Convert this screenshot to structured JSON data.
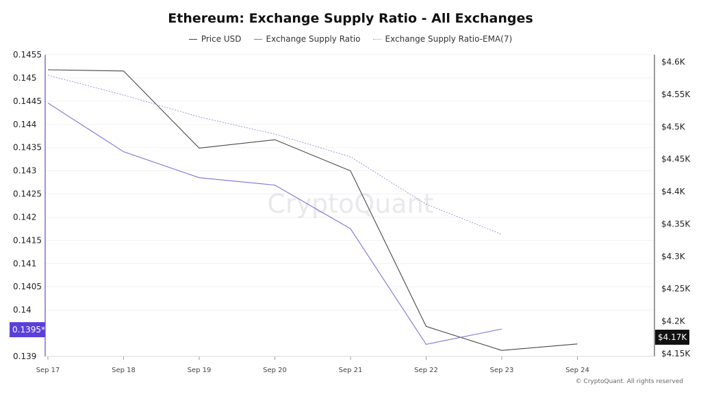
{
  "title": "Ethereum: Exchange Supply Ratio - All Exchanges",
  "legend": [
    {
      "label": "Price USD",
      "color": "#444444",
      "style": "solid"
    },
    {
      "label": "Exchange Supply Ratio",
      "color": "#7b6fd6",
      "style": "solid"
    },
    {
      "label": "Exchange Supply Ratio-EMA(7)",
      "color": "#9a93d8",
      "style": "dotted"
    }
  ],
  "watermark": "CryptoQuant",
  "copyright": "© CryptoQuant. All rights reserved",
  "badges": {
    "left": "0.1395*",
    "right": "$4.17K"
  },
  "chart_data": {
    "type": "line",
    "title": "Ethereum: Exchange Supply Ratio - All Exchanges",
    "categories": [
      "Sep 17",
      "Sep 18",
      "Sep 19",
      "Sep 20",
      "Sep 21",
      "Sep 22",
      "Sep 23",
      "Sep 24"
    ],
    "y_left": {
      "range": [
        0.139,
        0.1455
      ],
      "ticks": [
        "0.1455",
        "0.145",
        "0.1445",
        "0.144",
        "0.1435",
        "0.143",
        "0.1425",
        "0.142",
        "0.1415",
        "0.141",
        "0.1405",
        "0.14",
        "0.1395*",
        "0.139"
      ]
    },
    "y_right": {
      "range": [
        4150,
        4608
      ],
      "ticks": [
        {
          "value": 4600,
          "label": "$4.6K"
        },
        {
          "value": 4550,
          "label": "$4.55K"
        },
        {
          "value": 4500,
          "label": "$4.5K"
        },
        {
          "value": 4450,
          "label": "$4.45K"
        },
        {
          "value": 4400,
          "label": "$4.4K"
        },
        {
          "value": 4350,
          "label": "$4.35K"
        },
        {
          "value": 4300,
          "label": "$4.3K"
        },
        {
          "value": 4250,
          "label": "$4.25K"
        },
        {
          "value": 4200,
          "label": "$4.2K"
        },
        {
          "value": 4170,
          "label": "$4.17K"
        },
        {
          "value": 4150,
          "label": "$4.15K"
        }
      ]
    },
    "grid": true,
    "legend_position": "top-center",
    "series": [
      {
        "name": "Price USD",
        "axis": "right",
        "color": "#444444",
        "style": "solid",
        "values": [
          4588,
          4586,
          4467,
          4480,
          4432,
          4192,
          4155,
          4165
        ]
      },
      {
        "name": "Exchange Supply Ratio",
        "axis": "left",
        "color": "#7b6fd6",
        "style": "solid",
        "values": [
          0.14446,
          0.14341,
          0.14285,
          0.14269,
          0.14175,
          0.13926,
          0.13959,
          null
        ]
      },
      {
        "name": "Exchange Supply Ratio-EMA(7)",
        "axis": "left",
        "color": "#9a93d8",
        "style": "dotted",
        "values": [
          0.14506,
          0.14463,
          0.14416,
          0.14379,
          0.1433,
          0.14228,
          0.14163,
          null
        ]
      }
    ]
  }
}
